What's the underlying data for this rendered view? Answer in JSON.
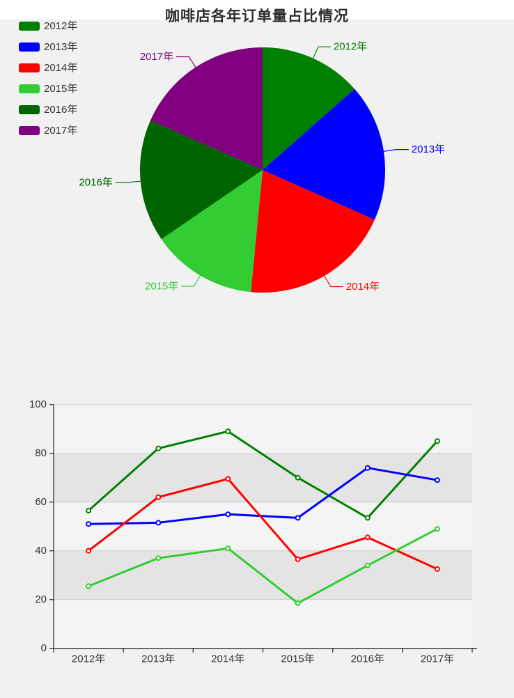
{
  "title": "咖啡店各年订单量占比情况",
  "legend": {
    "items": [
      {
        "label": "2012年",
        "color": "#008000"
      },
      {
        "label": "2013年",
        "color": "#0000ff"
      },
      {
        "label": "2014年",
        "color": "#ff0000"
      },
      {
        "label": "2015年",
        "color": "#32cd32"
      },
      {
        "label": "2016年",
        "color": "#006400"
      },
      {
        "label": "2017年",
        "color": "#800080"
      }
    ]
  },
  "chart_data": [
    {
      "type": "pie",
      "title": "咖啡店各年订单量占比情况",
      "categories": [
        "2012年",
        "2013年",
        "2014年",
        "2015年",
        "2016年",
        "2017年"
      ],
      "values": [
        173,
        232.5,
        254.5,
        178.5,
        207,
        235.5
      ],
      "percentages": [
        13.5,
        18.1,
        19.9,
        13.9,
        16.2,
        18.4
      ],
      "colors": [
        "#008000",
        "#0000ff",
        "#ff0000",
        "#32cd32",
        "#006400",
        "#800080"
      ],
      "start_angle": "12-oclock-clockwise",
      "labels": "category names outside with leader lines, colored as slice"
    },
    {
      "type": "line",
      "categories": [
        "2012年",
        "2013年",
        "2014年",
        "2015年",
        "2016年",
        "2017年"
      ],
      "series": [
        {
          "name": "green-line",
          "color": "#008000",
          "values": [
            56.5,
            82,
            89,
            70,
            53.5,
            85
          ]
        },
        {
          "name": "blue-line",
          "color": "#0000ff",
          "values": [
            51,
            51.5,
            55,
            53.5,
            74,
            69
          ]
        },
        {
          "name": "red-line",
          "color": "#ff0000",
          "values": [
            40,
            62,
            69.5,
            36.5,
            45.5,
            32.5
          ]
        },
        {
          "name": "limegreen-line",
          "color": "#32cd32",
          "values": [
            25.5,
            37,
            41,
            18.5,
            34,
            49
          ]
        }
      ],
      "xlabel": "",
      "ylabel": "",
      "ylim": [
        0,
        100
      ],
      "yticks": [
        0,
        20,
        40,
        60,
        80,
        100
      ],
      "grid": true,
      "split_area": "alternating bands 20-40 and 60-80 shaded",
      "legend_position": "none",
      "marker": "open-circle"
    }
  ],
  "style": {
    "band_light": "#f4f4f4",
    "band_dark": "#e4e4e4",
    "gridline": "#cccccc",
    "axis": "#333333",
    "axis_text": "#333333"
  }
}
